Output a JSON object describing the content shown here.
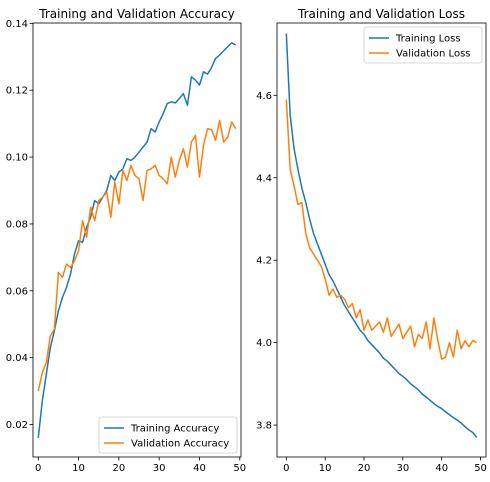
{
  "colors": {
    "training": "#1f77b4",
    "validation": "#ff7f0e"
  },
  "chart_data": [
    {
      "type": "line",
      "title": "Training and Validation Accuracy",
      "xlabel": "",
      "ylabel": "",
      "xlim": [
        -1.3,
        50.3
      ],
      "ylim": [
        0.0103,
        0.1401
      ],
      "xticks": [
        0,
        10,
        20,
        30,
        40,
        50
      ],
      "yticks": [
        0.02,
        0.04,
        0.06,
        0.08,
        0.1,
        0.12,
        0.14
      ],
      "ytick_labels": [
        "0.02",
        "0.04",
        "0.06",
        "0.08",
        "0.10",
        "0.12",
        "0.14"
      ],
      "grid": false,
      "legend": "lower right",
      "x": [
        0,
        1,
        2,
        3,
        4,
        5,
        6,
        7,
        8,
        9,
        10,
        11,
        12,
        13,
        14,
        15,
        16,
        17,
        18,
        19,
        20,
        21,
        22,
        23,
        24,
        25,
        26,
        27,
        28,
        29,
        30,
        31,
        32,
        33,
        34,
        35,
        36,
        37,
        38,
        39,
        40,
        41,
        42,
        43,
        44,
        45,
        46,
        47,
        48,
        49
      ],
      "series": [
        {
          "name": "Training Accuracy",
          "color_key": "training",
          "values": [
            0.016,
            0.027,
            0.035,
            0.043,
            0.048,
            0.054,
            0.058,
            0.061,
            0.065,
            0.071,
            0.075,
            0.0745,
            0.079,
            0.082,
            0.087,
            0.086,
            0.088,
            0.09,
            0.0945,
            0.093,
            0.0955,
            0.0965,
            0.0995,
            0.099,
            0.1,
            0.1015,
            0.103,
            0.1045,
            0.1085,
            0.1075,
            0.1105,
            0.113,
            0.116,
            0.1165,
            0.1162,
            0.1175,
            0.119,
            0.1155,
            0.124,
            0.123,
            0.1215,
            0.1255,
            0.1248,
            0.1268,
            0.1295,
            0.1305,
            0.1318,
            0.133,
            0.1342,
            0.1335
          ]
        },
        {
          "name": "Validation Accuracy",
          "color_key": "validation",
          "values": [
            0.03,
            0.0355,
            0.0385,
            0.0465,
            0.0485,
            0.0655,
            0.064,
            0.068,
            0.067,
            0.069,
            0.072,
            0.081,
            0.076,
            0.085,
            0.081,
            0.087,
            0.088,
            0.0895,
            0.082,
            0.0925,
            0.086,
            0.096,
            0.093,
            0.0975,
            0.0945,
            0.0935,
            0.087,
            0.096,
            0.0965,
            0.0975,
            0.0945,
            0.0935,
            0.092,
            0.1,
            0.094,
            0.099,
            0.1025,
            0.097,
            0.1045,
            0.1065,
            0.094,
            0.1035,
            0.1085,
            0.1082,
            0.105,
            0.111,
            0.1045,
            0.106,
            0.1105,
            0.1085
          ]
        }
      ]
    },
    {
      "type": "line",
      "title": "Training and Validation Loss",
      "xlabel": "",
      "ylabel": "",
      "xlim": [
        -2.4,
        51.4
      ],
      "ylim": [
        3.7225,
        4.7755
      ],
      "xticks": [
        0,
        10,
        20,
        30,
        40,
        50
      ],
      "yticks": [
        3.8,
        4.0,
        4.2,
        4.4,
        4.6
      ],
      "ytick_labels": [
        "3.8",
        "4.0",
        "4.2",
        "4.4",
        "4.6"
      ],
      "grid": false,
      "legend": "upper right",
      "x": [
        0,
        1,
        2,
        3,
        4,
        5,
        6,
        7,
        8,
        9,
        10,
        11,
        12,
        13,
        14,
        15,
        16,
        17,
        18,
        19,
        20,
        21,
        22,
        23,
        24,
        25,
        26,
        27,
        28,
        29,
        30,
        31,
        32,
        33,
        34,
        35,
        36,
        37,
        38,
        39,
        40,
        41,
        42,
        43,
        44,
        45,
        46,
        47,
        48,
        49
      ],
      "series": [
        {
          "name": "Training Loss",
          "color_key": "training",
          "values": [
            4.75,
            4.55,
            4.47,
            4.42,
            4.375,
            4.34,
            4.3,
            4.265,
            4.24,
            4.215,
            4.19,
            4.165,
            4.15,
            4.13,
            4.11,
            4.09,
            4.075,
            4.06,
            4.045,
            4.03,
            4.02,
            4.005,
            3.995,
            3.985,
            3.975,
            3.962,
            3.955,
            3.945,
            3.935,
            3.925,
            3.918,
            3.91,
            3.9,
            3.893,
            3.885,
            3.875,
            3.868,
            3.86,
            3.852,
            3.845,
            3.84,
            3.832,
            3.825,
            3.818,
            3.812,
            3.805,
            3.796,
            3.788,
            3.782,
            3.77
          ]
        },
        {
          "name": "Validation Loss",
          "color_key": "validation",
          "values": [
            4.59,
            4.42,
            4.38,
            4.335,
            4.34,
            4.265,
            4.23,
            4.215,
            4.2,
            4.185,
            4.155,
            4.115,
            4.13,
            4.11,
            4.115,
            4.105,
            4.085,
            4.095,
            4.06,
            4.08,
            4.03,
            4.055,
            4.03,
            4.04,
            4.05,
            4.025,
            4.06,
            4.015,
            4.03,
            4.045,
            4.01,
            4.025,
            4.04,
            3.99,
            4.02,
            4.01,
            4.05,
            3.985,
            4.06,
            4.005,
            3.96,
            3.965,
            4.0,
            3.965,
            4.03,
            3.985,
            4.005,
            3.99,
            4.005,
            4.0
          ]
        }
      ]
    }
  ]
}
